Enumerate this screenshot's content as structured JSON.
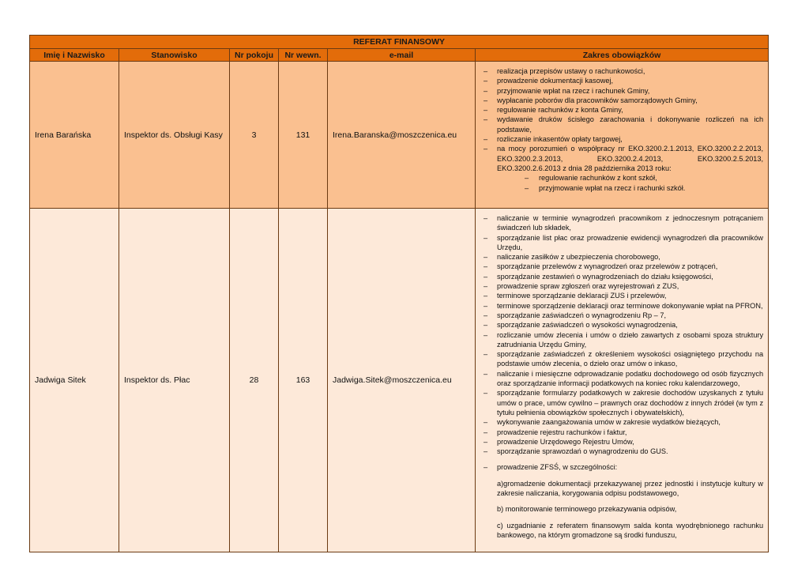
{
  "title": "REFERAT FINANSOWY",
  "headers": [
    "Imię i Nazwisko",
    "Stanowisko",
    "Nr pokoju",
    "Nr wewn.",
    "e-mail",
    "Zakres obowiązków"
  ],
  "rows": [
    {
      "name": "Irena Barańska",
      "position": "Inspektor ds. Obsługi Kasy",
      "room": "3",
      "ext": "131",
      "email": "Irena.Baranska@moszczenica.eu",
      "duties": [
        "realizacja przepisów ustawy o rachunkowości,",
        "prowadzenie dokumentacji kasowej,",
        "przyjmowanie wpłat na rzecz i rachunek Gminy,",
        "wypłacanie poborów dla pracowników samorządowych Gminy,",
        "regulowanie rachunków z konta Gminy,",
        "wydawanie druków ścisłego zarachowania  i dokonywanie rozliczeń na ich podstawie,",
        "rozliczanie inkasentów opłaty targowej,",
        "na mocy porozumień o współpracy nr EKO.3200.2.1.2013, EKO.3200.2.2.2013, EKO.3200.2.3.2013, EKO.3200.2.4.2013, EKO.3200.2.5.2013, EKO.3200.2.6.2013 z dnia 28 października 2013 roku:"
      ],
      "sub_duties": [
        "regulowanie rachunków z kont szkół,",
        "przyjmowanie wpłat na rzecz i rachunki szkół."
      ]
    },
    {
      "name": "Jadwiga Sitek",
      "position": "Inspektor ds. Płac",
      "room": "28",
      "ext": "163",
      "email": "Jadwiga.Sitek@moszczenica.eu",
      "duties": [
        "naliczanie w terminie wynagrodzeń pracownikom z jednoczesnym potrącaniem świadczeń lub składek,",
        "sporządzanie list płac oraz prowadzenie ewidencji wynagrodzeń dla pracowników Urzędu,",
        "naliczanie zasiłków z ubezpieczenia chorobowego,",
        "sporządzanie przelewów z wynagrodzeń oraz przelewów z potrąceń,",
        "sporządzanie zestawień o wynagrodzeniach do działu księgowości,",
        "prowadzenie spraw zgłoszeń oraz wyrejestrowań z ZUS,",
        "terminowe sporządzanie deklaracji ZUS i przelewów,",
        "terminowe sporządzenie deklaracji oraz terminowe dokonywanie wpłat na PFRON,",
        "sporządzanie zaświadczeń o wynagrodzeniu Rp – 7,",
        "sporządzanie zaświadczeń o wysokości wynagrodzenia,",
        "rozliczanie umów zlecenia i umów o dzieło zawartych z osobami spoza struktury zatrudniania Urzędu Gminy,",
        "sporządzanie zaświadczeń z określeniem wysokości osiągniętego przychodu na podstawie umów zlecenia, o dzieło oraz umów o inkaso,",
        "naliczanie i miesięczne odprowadzanie podatku dochodowego od osób fizycznych oraz sporządzanie informacji podatkowych na koniec roku kalendarzowego,",
        "sporządzanie formularzy podatkowych w zakresie dochodów uzyskanych z tytułu umów o prace, umów cywilno – prawnych oraz dochodów z innych źródeł (w tym z tytułu pełnienia obowiązków społecznych i obywatelskich),",
        "wykonywanie zaangażowania umów w zakresie wydatków bieżących,",
        "prowadzenie rejestru rachunków i faktur,",
        "prowadzenie Urzędowego Rejestru Umów,",
        "sporządzanie sprawozdań o wynagrodzeniu do GUS."
      ],
      "zfss": "prowadzenie ZFSŚ, w szczególności:",
      "paragraphs": [
        "a)gromadzenie dokumentacji przekazywanej przez jednostki i instytucje kultury w zakresie naliczania, korygowania odpisu podstawowego,",
        "b) monitorowanie terminowego przekazywania odpisów,",
        "c) uzgadnianie z referatem finansowym salda konta wyodrębnionego rachunku bankowego, na którym gromadzone są środki funduszu,"
      ]
    }
  ],
  "colors": {
    "header": "#e36c0a",
    "row1": "#fac090",
    "row2": "#fde9d9"
  }
}
